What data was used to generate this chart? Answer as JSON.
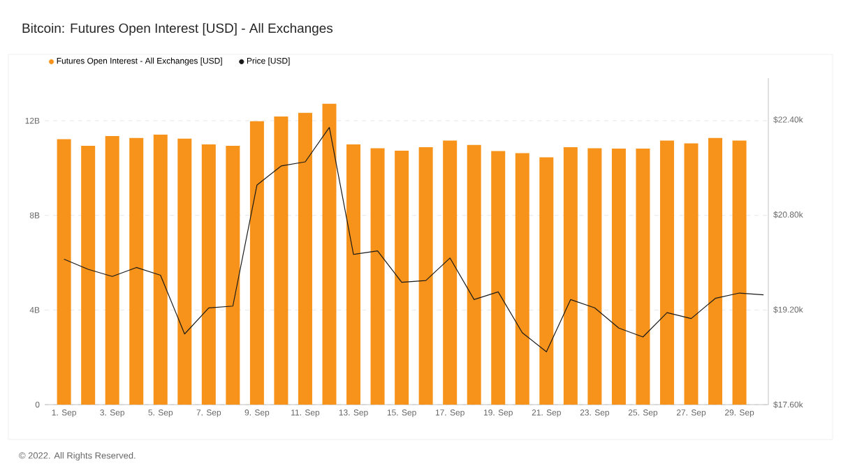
{
  "chart_data": {
    "type": "bar",
    "title": "Bitcoin: Futures Open Interest [USD] - All Exchanges",
    "categories": [
      "1. Sep",
      null,
      "3. Sep",
      null,
      "5. Sep",
      null,
      "7. Sep",
      null,
      "9. Sep",
      null,
      "11. Sep",
      null,
      "13. Sep",
      null,
      "15. Sep",
      null,
      "17. Sep",
      null,
      "19. Sep",
      null,
      "21. Sep",
      null,
      "23. Sep",
      null,
      "25. Sep",
      null,
      "27. Sep",
      null,
      "29. Sep",
      null
    ],
    "series": [
      {
        "name": "Futures Open Interest - All Exchanges [USD]",
        "axis": "y",
        "color": "#f7931a",
        "values": [
          11.22,
          10.94,
          11.35,
          11.27,
          11.41,
          11.24,
          11.0,
          10.94,
          11.98,
          12.18,
          12.33,
          12.72,
          11.0,
          10.84,
          10.73,
          10.88,
          11.16,
          10.98,
          10.72,
          10.63,
          10.45,
          10.88,
          10.84,
          10.82,
          10.82,
          11.16,
          11.04,
          11.27,
          11.16,
          null
        ]
      },
      {
        "name": "Price [USD]",
        "type": "line",
        "axis": "y2",
        "color": "#1a1a1a",
        "values": [
          20050,
          19880,
          19760,
          19910,
          19780,
          18790,
          19230,
          19260,
          21300,
          21620,
          21690,
          22270,
          20130,
          20190,
          19660,
          19690,
          20070,
          19370,
          19500,
          18810,
          18490,
          19370,
          19230,
          18890,
          18740,
          19150,
          19050,
          19390,
          19480,
          19450
        ]
      }
    ],
    "ylim": [
      0,
      13.8
    ],
    "yticks": [
      0,
      {
        "value": 4,
        "label": "4B"
      },
      {
        "value": 8,
        "label": "8B"
      },
      {
        "value": 12,
        "label": "12B"
      }
    ],
    "y2lim": [
      17600,
      23100
    ],
    "y2ticks": [
      {
        "value": 17600,
        "label": "$17.60k"
      },
      {
        "value": 19200,
        "label": "$19.20k"
      },
      {
        "value": 20800,
        "label": "$20.80k"
      },
      {
        "value": 22400,
        "label": "$22.40k"
      }
    ],
    "grid": "y",
    "legend": "top left",
    "annotations": [
      "© 2022. All Rights Reserved."
    ]
  }
}
